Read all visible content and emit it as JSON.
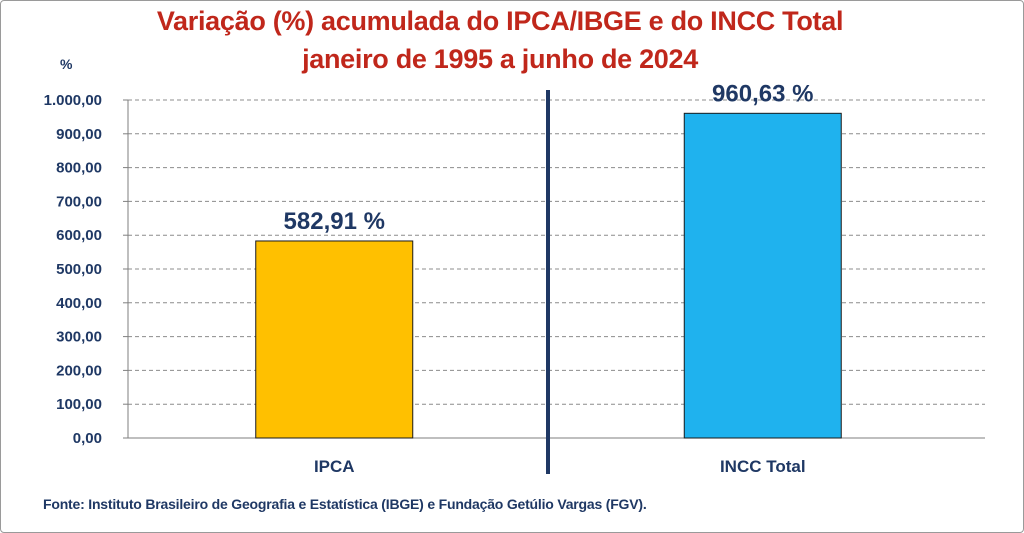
{
  "chart_data": {
    "type": "bar",
    "title": "Variação (%) acumulada do IPCA/IBGE e do INCC Total",
    "subtitle": "janeiro de 1995 a junho de 2024",
    "ylabel": "%",
    "categories": [
      "IPCA",
      "INCC Total"
    ],
    "values": [
      582.91,
      960.63
    ],
    "data_labels": [
      "582,91 %",
      "960,63 %"
    ],
    "bar_colors": [
      "#FFC000",
      "#1FB2EE"
    ],
    "yticks": [
      "0,00",
      "100,00",
      "200,00",
      "300,00",
      "400,00",
      "500,00",
      "600,00",
      "700,00",
      "800,00",
      "900,00",
      "1.000,00"
    ],
    "ylim": [
      0,
      1000
    ],
    "grid": true,
    "separator_color": "#1F3864"
  },
  "source_note": "Fonte: Instituto Brasileiro de Geografia e Estatística (IBGE) e Fundação Getúlio Vargas (FGV)."
}
